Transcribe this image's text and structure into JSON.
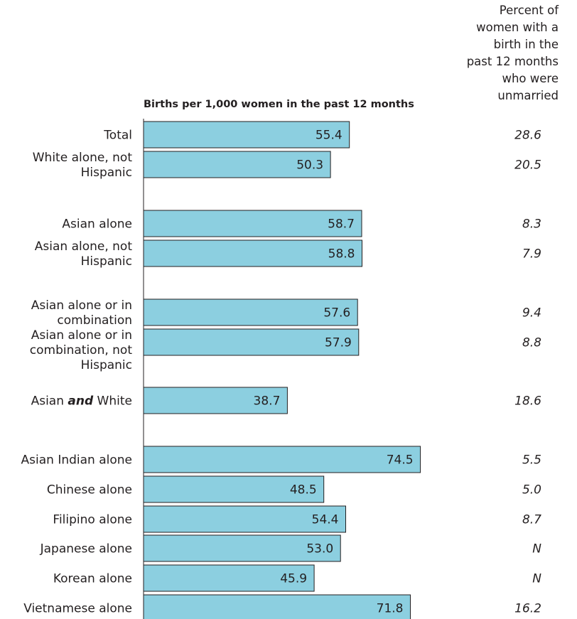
{
  "chart_data": {
    "type": "bar",
    "orientation": "horizontal",
    "title": "Births per 1,000 women in the past 12 months",
    "secondary_column_title": "Percent of women with a birth in the past 12 months who were unmarried",
    "categories": [
      "Total",
      "White alone, not Hispanic",
      "Asian alone",
      "Asian alone, not Hispanic",
      "Asian alone or in combination",
      "Asian alone or in combination, not Hispanic",
      "Asian and White",
      "Asian Indian alone",
      "Chinese alone",
      "Filipino alone",
      "Japanese alone",
      "Korean alone",
      "Vietnamese alone"
    ],
    "series": [
      {
        "values": [
          55.4,
          50.3,
          58.7,
          58.8,
          57.6,
          57.9,
          38.7,
          74.5,
          48.5,
          54.4,
          53.0,
          45.9,
          71.8
        ],
        "value_labels": [
          "55.4",
          "50.3",
          "58.7",
          "58.8",
          "57.6",
          "57.9",
          "38.7",
          "74.5",
          "48.5",
          "54.4",
          "53.0",
          "45.9",
          "71.8"
        ]
      }
    ],
    "percent_unmarried": [
      "28.6",
      "20.5",
      "8.3",
      "7.9",
      "9.4",
      "8.8",
      "18.6",
      "5.5",
      "5.0",
      "8.7",
      "N",
      "N",
      "16.2"
    ],
    "xlim": [
      0,
      85
    ],
    "grid": false,
    "legend": "none",
    "bar_color": "#8ccfe0",
    "outline_color": "#231f20"
  }
}
